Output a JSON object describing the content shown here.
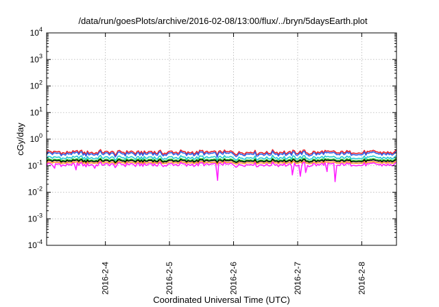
{
  "chart_data": {
    "type": "line",
    "title": "/data/run/goesPlots/archive/2016-02-08/13:00/flux/../bryn/5daysEarth.plot",
    "xlabel": "Coordinated Universal Time (UTC)",
    "ylabel": "cGy/day",
    "yscale": "log",
    "ylim_exp": [
      -4,
      4
    ],
    "xlim": [
      "2016-02-03 02:00",
      "2016-02-08 13:00"
    ],
    "grid": true,
    "x_ticks": [
      {
        "label": "2016-2-4",
        "date": "2016-02-04 00:00"
      },
      {
        "label": "2016-2-5",
        "date": "2016-02-05 00:00"
      },
      {
        "label": "2016-2-6",
        "date": "2016-02-06 00:00"
      },
      {
        "label": "2016-2-7",
        "date": "2016-02-07 00:00"
      },
      {
        "label": "2016-2-8",
        "date": "2016-02-08 00:00"
      }
    ],
    "y_ticks": [
      {
        "base": "10",
        "exp": "4"
      },
      {
        "base": "10",
        "exp": "3"
      },
      {
        "base": "10",
        "exp": "2"
      },
      {
        "base": "10",
        "exp": "1"
      },
      {
        "base": "10",
        "exp": "0"
      },
      {
        "base": "10",
        "exp": "-1"
      },
      {
        "base": "10",
        "exp": "-2"
      },
      {
        "base": "10",
        "exp": "-3"
      },
      {
        "base": "10",
        "exp": "-4"
      }
    ],
    "series": [
      {
        "color": "#e8202a",
        "level": 0.32,
        "spread": 0.09
      },
      {
        "color": "#3060e8",
        "level": 0.28,
        "spread": 0.08
      },
      {
        "color": "#20c8d0",
        "level": 0.2,
        "spread": 0.05
      },
      {
        "color": "#30c030",
        "level": 0.165,
        "spread": 0.03
      },
      {
        "color": "#000000",
        "level": 0.15,
        "spread": 0.025
      },
      {
        "color": "#ff9020",
        "level": 0.13,
        "spread": 0.02
      },
      {
        "color": "#ff20ff",
        "level": 0.11,
        "spread": 0.03
      }
    ],
    "magenta_dips": [
      {
        "date": "2016-02-03 05:00",
        "value": 0.08
      },
      {
        "date": "2016-02-03 13:00",
        "value": 0.07
      },
      {
        "date": "2016-02-03 20:00",
        "value": 0.08
      },
      {
        "date": "2016-02-05 18:00",
        "value": 0.028
      },
      {
        "date": "2016-02-06 22:00",
        "value": 0.045
      },
      {
        "date": "2016-02-07 01:00",
        "value": 0.04
      },
      {
        "date": "2016-02-07 03:00",
        "value": 0.055
      },
      {
        "date": "2016-02-07 11:00",
        "value": 0.06
      },
      {
        "date": "2016-02-07 14:00",
        "value": 0.025
      }
    ]
  }
}
